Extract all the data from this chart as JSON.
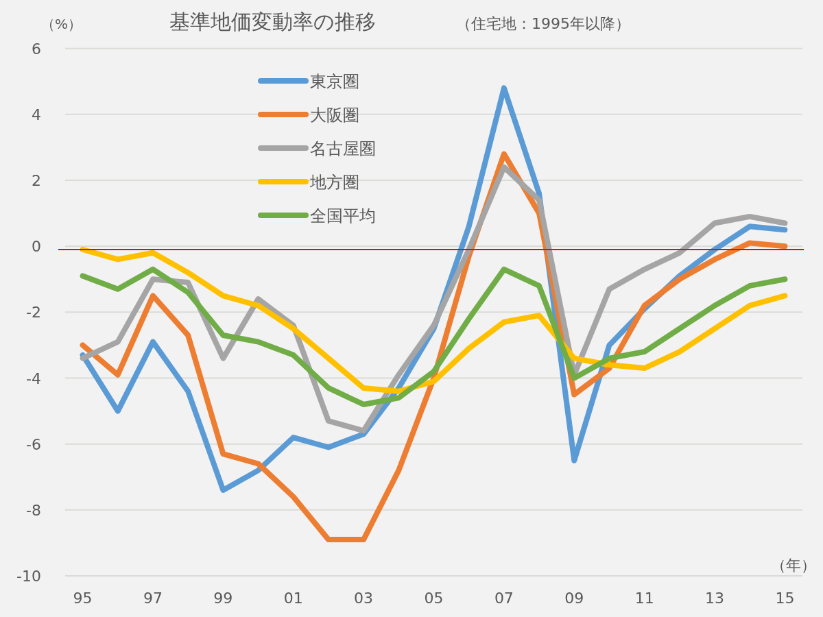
{
  "chart_data": {
    "type": "line",
    "title": "基準地価変動率の推移",
    "subtitle": "（住宅地：1995年以降）",
    "ylabel": "（%）",
    "xlabel": "（年）",
    "x": [
      1995,
      1996,
      1997,
      1998,
      1999,
      2000,
      2001,
      2002,
      2003,
      2004,
      2005,
      2006,
      2007,
      2008,
      2009,
      2010,
      2011,
      2012,
      2013,
      2014,
      2015
    ],
    "series": [
      {
        "name": "東京圏",
        "color": "#5b9bd5",
        "values": [
          -3.3,
          -5.0,
          -2.9,
          -4.4,
          -7.4,
          -6.8,
          -5.8,
          -6.1,
          -5.7,
          -4.3,
          -2.5,
          0.6,
          4.8,
          1.6,
          -6.5,
          -3.0,
          -1.9,
          -0.9,
          -0.1,
          0.6,
          0.5
        ]
      },
      {
        "name": "大阪圏",
        "color": "#ed7d31",
        "values": [
          -3.0,
          -3.9,
          -1.5,
          -2.7,
          -6.3,
          -6.6,
          -7.6,
          -8.9,
          -8.9,
          -6.8,
          -4.0,
          -0.3,
          2.8,
          1.0,
          -4.5,
          -3.7,
          -1.8,
          -1.0,
          -0.4,
          0.1,
          0.0
        ]
      },
      {
        "name": "名古屋圏",
        "color": "#a5a5a5",
        "values": [
          -3.4,
          -2.9,
          -1.0,
          -1.1,
          -3.4,
          -1.6,
          -2.4,
          -5.3,
          -5.6,
          -3.9,
          -2.4,
          -0.1,
          2.4,
          1.4,
          -3.9,
          -1.3,
          -0.7,
          -0.2,
          0.7,
          0.9,
          0.7
        ]
      },
      {
        "name": "地方圏",
        "color": "#ffc000",
        "values": [
          -0.1,
          -0.4,
          -0.2,
          -0.8,
          -1.5,
          -1.8,
          -2.5,
          -3.4,
          -4.3,
          -4.4,
          -4.1,
          -3.1,
          -2.3,
          -2.1,
          -3.4,
          -3.6,
          -3.7,
          -3.2,
          -2.5,
          -1.8,
          -1.5
        ]
      },
      {
        "name": "全国平均",
        "color": "#70ad47",
        "values": [
          -0.9,
          -1.3,
          -0.7,
          -1.4,
          -2.7,
          -2.9,
          -3.3,
          -4.3,
          -4.8,
          -4.6,
          -3.8,
          -2.2,
          -0.7,
          -1.2,
          -4.0,
          -3.4,
          -3.2,
          -2.5,
          -1.8,
          -1.2,
          -1.0
        ]
      }
    ],
    "xlim": [
      1994.5,
      2015.5
    ],
    "xticks": [
      {
        "value": 1995,
        "label": "95"
      },
      {
        "value": 1997,
        "label": "97"
      },
      {
        "value": 1999,
        "label": "99"
      },
      {
        "value": 2001,
        "label": "01"
      },
      {
        "value": 2003,
        "label": "03"
      },
      {
        "value": 2005,
        "label": "05"
      },
      {
        "value": 2007,
        "label": "07"
      },
      {
        "value": 2009,
        "label": "09"
      },
      {
        "value": 2011,
        "label": "11"
      },
      {
        "value": 2013,
        "label": "13"
      },
      {
        "value": 2015,
        "label": "15"
      }
    ],
    "ylim": [
      -10,
      6
    ],
    "yticks": [
      -10,
      -8,
      -6,
      -4,
      -2,
      0,
      2,
      4,
      6
    ],
    "ref_lines": [
      {
        "axis": "y",
        "value": -0.1,
        "color": "#ff0000"
      }
    ],
    "grid": "y",
    "legend": "top left",
    "marker": "none",
    "line_style": "solid"
  }
}
